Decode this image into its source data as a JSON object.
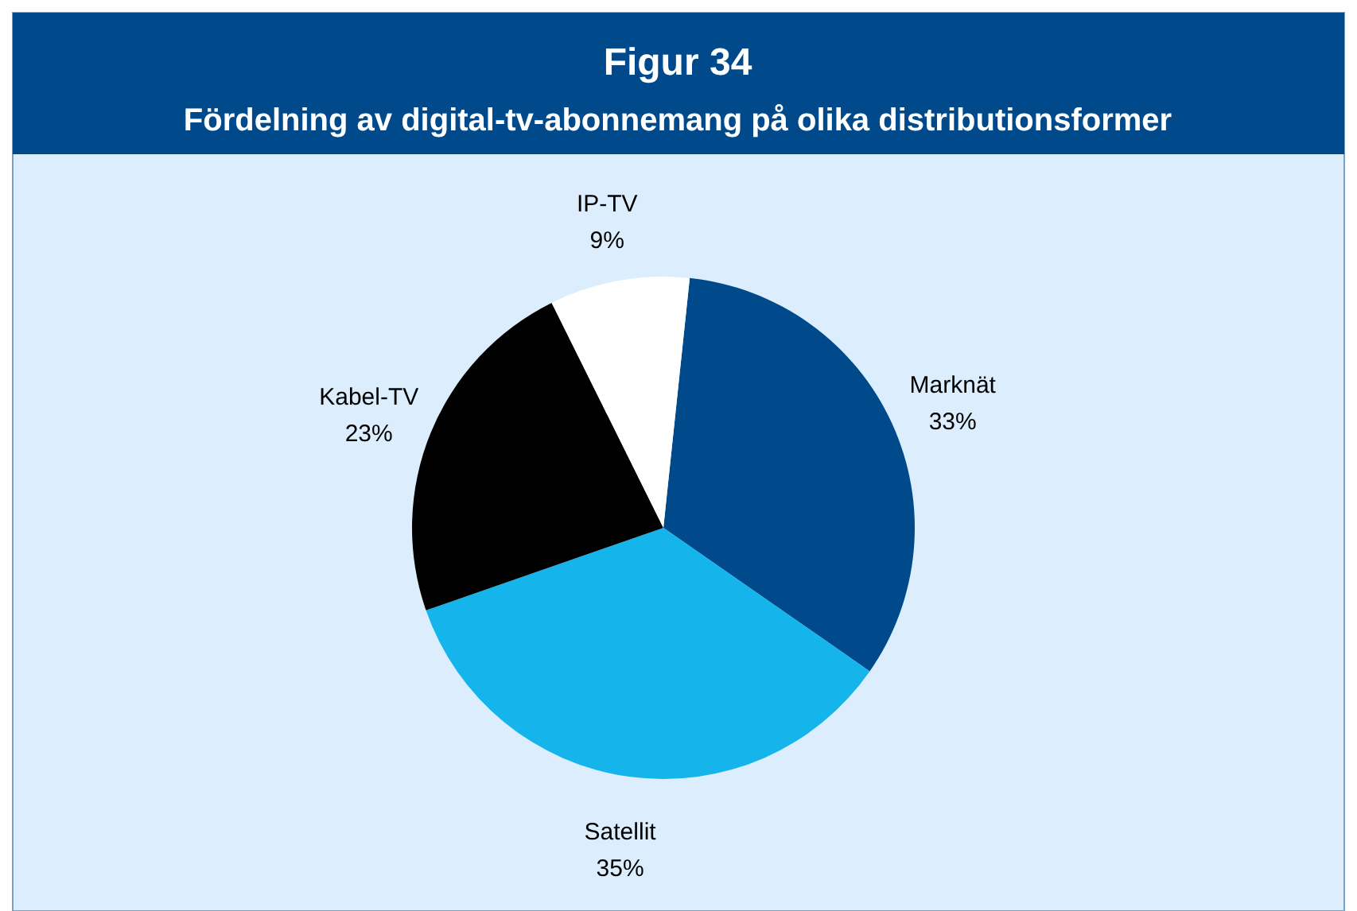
{
  "chart_data": {
    "type": "pie",
    "title": "Figur 34",
    "subtitle": "Fördelning av digital-tv-abonnemang på olika distributionsformer",
    "categories": [
      "Marknät",
      "Satellit",
      "Kabel-TV",
      "IP-TV"
    ],
    "values": [
      33,
      35,
      23,
      9
    ],
    "value_labels": [
      "33%",
      "35%",
      "23%",
      "9%"
    ],
    "colors": [
      "#004a8c",
      "#15b5eb",
      "#000000",
      "#ffffff"
    ]
  }
}
